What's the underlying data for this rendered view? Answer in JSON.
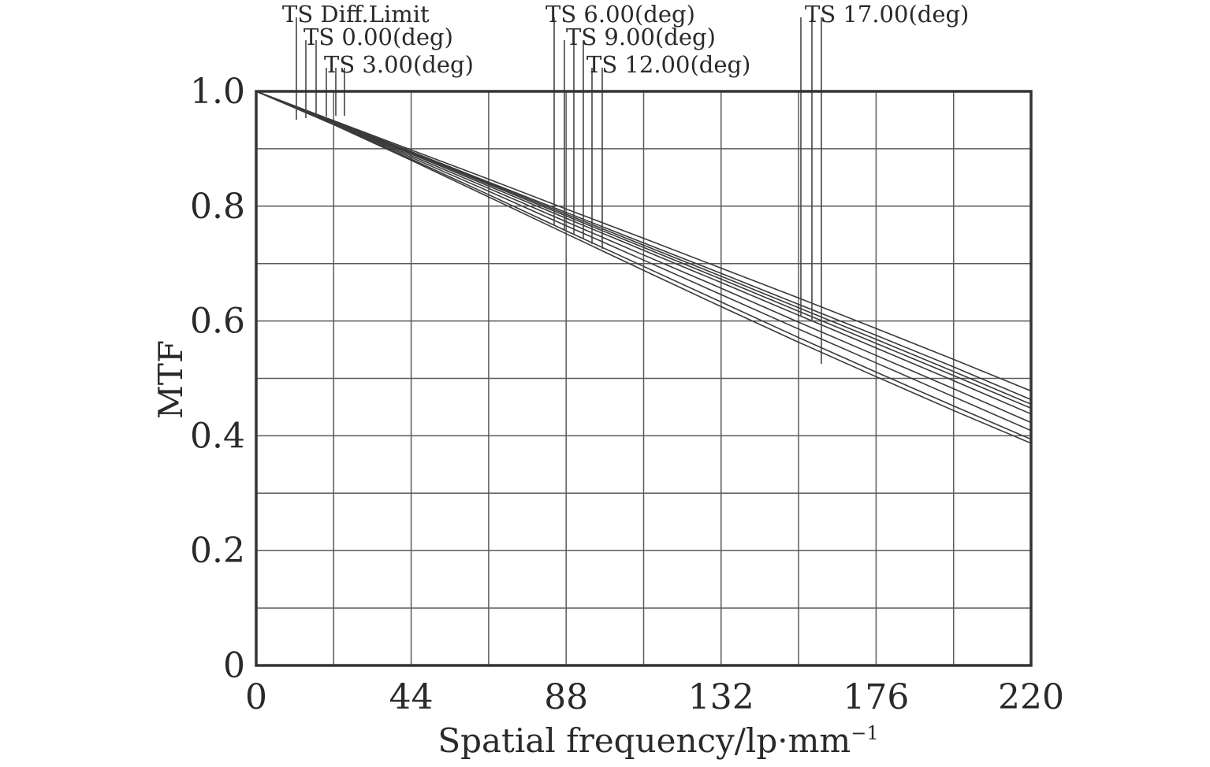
{
  "chart_data": {
    "type": "line",
    "xlabel": "Spatial frequency/lp·mm",
    "xlabel_superscript": "−1",
    "ylabel": "MTF",
    "xlim": [
      0,
      220
    ],
    "ylim": [
      0,
      1.0
    ],
    "x_ticks": [
      0,
      44,
      88,
      132,
      176,
      220
    ],
    "x_tick_labels": [
      "0",
      "44",
      "88",
      "132",
      "176",
      "220"
    ],
    "y_ticks": [
      0,
      0.2,
      0.4,
      0.6,
      0.8,
      1.0
    ],
    "y_tick_labels": [
      "0",
      "0.2",
      "0.4",
      "0.6",
      "0.8",
      "1.0"
    ],
    "x_grid_step": 22,
    "y_grid_step": 0.1,
    "grid": true,
    "legend_placement": "top, above plot area",
    "legend": [
      {
        "label": "TS Diff.Limit",
        "row": 0
      },
      {
        "label": "TS 0.00(deg)",
        "row": 1
      },
      {
        "label": "TS 3.00(deg)",
        "row": 2
      },
      {
        "label": "TS 6.00(deg)",
        "row": 0
      },
      {
        "label": "TS 9.00(deg)",
        "row": 1
      },
      {
        "label": "TS 12.00(deg)",
        "row": 2
      },
      {
        "label": "TS 17.00(deg)",
        "row": 0
      }
    ],
    "series": [
      {
        "x": [
          0,
          22,
          44,
          66,
          88,
          110,
          132,
          154,
          176,
          198,
          220
        ],
        "values": [
          1.0,
          0.949,
          0.898,
          0.847,
          0.795,
          0.744,
          0.692,
          0.64,
          0.587,
          0.533,
          0.478
        ]
      },
      {
        "x": [
          0,
          22,
          44,
          66,
          88,
          110,
          132,
          154,
          176,
          198,
          220
        ],
        "values": [
          1.0,
          0.948,
          0.895,
          0.842,
          0.789,
          0.736,
          0.683,
          0.629,
          0.575,
          0.52,
          0.463
        ]
      },
      {
        "x": [
          0,
          22,
          44,
          66,
          88,
          110,
          132,
          154,
          176,
          198,
          220
        ],
        "values": [
          1.0,
          0.948,
          0.894,
          0.84,
          0.786,
          0.732,
          0.678,
          0.623,
          0.568,
          0.512,
          0.455
        ]
      },
      {
        "x": [
          0,
          22,
          44,
          66,
          88,
          110,
          132,
          154,
          176,
          198,
          220
        ],
        "values": [
          1.0,
          0.947,
          0.893,
          0.838,
          0.783,
          0.728,
          0.673,
          0.617,
          0.561,
          0.505,
          0.448
        ]
      },
      {
        "x": [
          0,
          22,
          44,
          66,
          88,
          110,
          132,
          154,
          176,
          198,
          220
        ],
        "values": [
          1.0,
          0.946,
          0.891,
          0.835,
          0.779,
          0.723,
          0.667,
          0.61,
          0.553,
          0.496,
          0.438
        ]
      },
      {
        "x": [
          0,
          22,
          44,
          66,
          88,
          110,
          132,
          154,
          176,
          198,
          220
        ],
        "values": [
          1.0,
          0.945,
          0.888,
          0.831,
          0.773,
          0.715,
          0.657,
          0.598,
          0.54,
          0.482,
          0.423
        ]
      },
      {
        "x": [
          0,
          22,
          44,
          66,
          88,
          110,
          132,
          154,
          176,
          198,
          220
        ],
        "values": [
          1.0,
          0.944,
          0.885,
          0.826,
          0.766,
          0.706,
          0.646,
          0.586,
          0.527,
          0.468,
          0.409
        ]
      },
      {
        "x": [
          0,
          22,
          44,
          66,
          88,
          110,
          132,
          154,
          176,
          198,
          220
        ],
        "values": [
          1.0,
          0.943,
          0.882,
          0.82,
          0.757,
          0.695,
          0.633,
          0.571,
          0.511,
          0.452,
          0.394
        ]
      },
      {
        "x": [
          0,
          22,
          44,
          66,
          88,
          110,
          132,
          154,
          176,
          198,
          220
        ],
        "values": [
          1.0,
          0.942,
          0.88,
          0.816,
          0.752,
          0.688,
          0.625,
          0.563,
          0.503,
          0.444,
          0.387
        ]
      }
    ]
  },
  "colors": {
    "background": "#ffffff",
    "lines": "#3a3a3a",
    "grid": "#5a5a5a",
    "frame": "#333333"
  }
}
